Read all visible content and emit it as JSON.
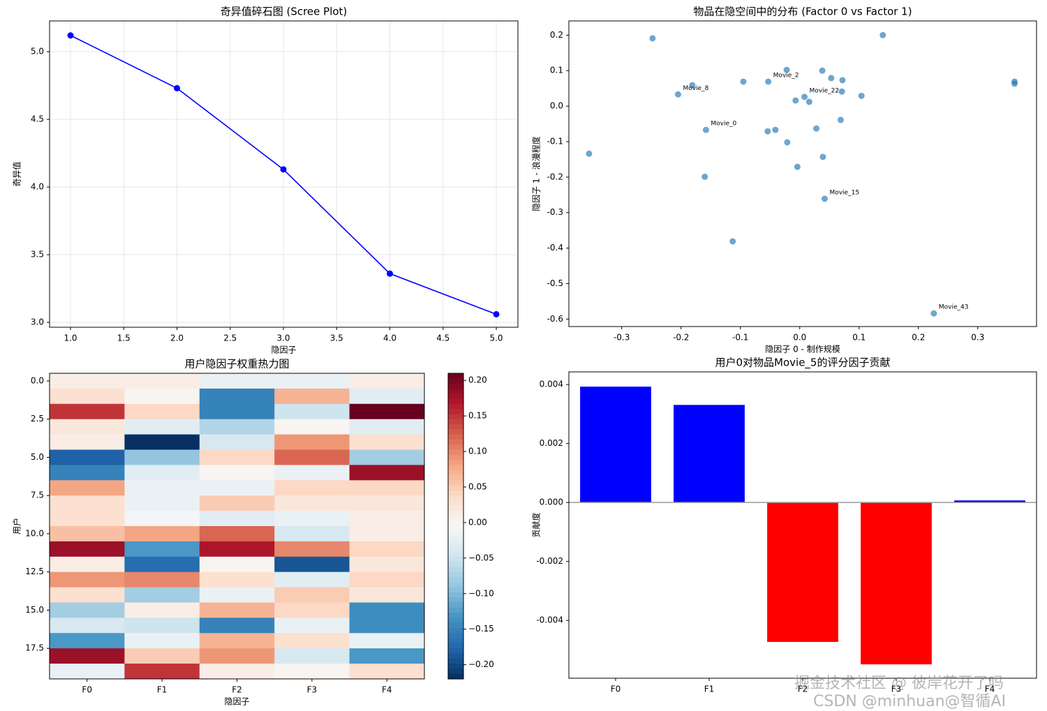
{
  "chart_data": [
    {
      "type": "line",
      "title": "奇异值碎石图 (Scree Plot)",
      "x_label": "隐因子",
      "y_label": "奇异值",
      "x": [
        1,
        2,
        3,
        4,
        5
      ],
      "values": [
        5.12,
        4.73,
        4.13,
        3.36,
        3.06
      ],
      "color": "blue",
      "xlim": [
        0.803,
        5.203
      ],
      "xticks": [
        {
          "value": 1,
          "label": "1.0"
        },
        1.5,
        {
          "value": 2,
          "label": "2.0"
        },
        2.5,
        {
          "value": 3,
          "label": "3.0"
        },
        3.5,
        {
          "value": 4,
          "label": "4.0"
        },
        4.5,
        {
          "value": 5,
          "label": "5.0"
        }
      ],
      "ylim": [
        2.964,
        5.227
      ],
      "yticks": [
        {
          "value": 3,
          "label": "3.0"
        },
        3.5,
        {
          "value": 4,
          "label": "4.0"
        },
        4.5,
        {
          "value": 5,
          "label": "5.0"
        }
      ],
      "grid": true
    },
    {
      "type": "scatter",
      "title": "物品在隐空间中的分布 (Factor 0 vs Factor 1)",
      "x_label": "隐因子 0 - 制作规模",
      "y_label": "隐因子 1 - 浪漫程度",
      "x": [
        -0.355,
        -0.248,
        -0.181,
        -0.205,
        -0.158,
        -0.16,
        -0.113,
        -0.095,
        -0.053,
        -0.022,
        -0.054,
        -0.041,
        -0.021,
        -0.004,
        -0.007,
        0.008,
        0.016,
        0.028,
        0.038,
        0.053,
        0.039,
        0.042,
        0.072,
        0.071,
        0.069,
        0.104,
        0.14,
        0.226,
        0.362,
        0.362
      ],
      "values": [
        -0.134,
        0.191,
        0.059,
        0.033,
        -0.067,
        -0.199,
        -0.381,
        0.069,
        0.069,
        0.102,
        -0.071,
        -0.067,
        -0.102,
        -0.171,
        0.016,
        0.026,
        0.012,
        -0.063,
        0.1,
        0.079,
        -0.143,
        -0.261,
        0.073,
        0.041,
        -0.039,
        0.029,
        0.2,
        -0.584,
        0.069,
        0.063
      ],
      "color": "#1f77b4",
      "annotations": [
        {
          "text": "Movie_8",
          "x": -0.205,
          "y": 0.033
        },
        {
          "text": "Movie_0",
          "x": -0.158,
          "y": -0.067
        },
        {
          "text": "Movie_2",
          "x": -0.053,
          "y": 0.069
        },
        {
          "text": "Movie_22",
          "x": 0.008,
          "y": 0.026
        },
        {
          "text": "Movie_15",
          "x": 0.042,
          "y": -0.261
        },
        {
          "text": "Movie_43",
          "x": 0.226,
          "y": -0.584
        }
      ],
      "xlim": [
        -0.389,
        0.399
      ],
      "xticks": [
        -0.3,
        -0.2,
        -0.1,
        {
          "value": 0,
          "label": "0.0"
        },
        0.1,
        0.2,
        0.3
      ],
      "ylim": [
        -0.621,
        0.24
      ],
      "yticks": [
        -0.6,
        -0.5,
        -0.4,
        -0.3,
        -0.2,
        -0.1,
        {
          "value": 0,
          "label": "0.0"
        },
        0.1,
        0.2
      ],
      "grid": false
    },
    {
      "type": "heatmap",
      "title": "用户隐因子权重热力图",
      "x_label": "隐因子",
      "y_label": "用户",
      "categories": [
        "F0",
        "F1",
        "F2",
        "F3",
        "F4"
      ],
      "values": [
        [
          0.01,
          0.01,
          -0.02,
          -0.02,
          0.01
        ],
        [
          0.03,
          0.0,
          -0.15,
          0.07,
          -0.03
        ],
        [
          0.15,
          0.04,
          -0.15,
          -0.05,
          0.21
        ],
        [
          0.02,
          -0.03,
          -0.07,
          0.0,
          -0.03
        ],
        [
          0.01,
          -0.22,
          -0.04,
          0.09,
          0.03
        ],
        [
          -0.18,
          -0.09,
          0.04,
          0.12,
          -0.08
        ],
        [
          -0.15,
          -0.03,
          0.0,
          -0.02,
          0.18
        ],
        [
          0.08,
          -0.02,
          -0.02,
          0.04,
          0.04
        ],
        [
          0.03,
          -0.02,
          0.05,
          0.02,
          0.02
        ],
        [
          0.03,
          -0.01,
          -0.03,
          -0.02,
          0.01
        ],
        [
          0.06,
          0.08,
          0.12,
          -0.04,
          0.01
        ],
        [
          0.18,
          -0.13,
          0.17,
          0.1,
          0.04
        ],
        [
          0.01,
          -0.17,
          0.0,
          -0.19,
          0.02
        ],
        [
          0.09,
          0.1,
          0.03,
          -0.03,
          0.04
        ],
        [
          0.03,
          -0.08,
          -0.02,
          0.05,
          0.02
        ],
        [
          -0.08,
          0.01,
          0.07,
          0.04,
          -0.14
        ],
        [
          -0.04,
          -0.05,
          -0.15,
          -0.02,
          -0.14
        ],
        [
          -0.13,
          -0.02,
          0.07,
          0.03,
          -0.02
        ],
        [
          0.18,
          0.05,
          0.09,
          -0.04,
          -0.13
        ],
        [
          -0.02,
          0.15,
          0.01,
          0.0,
          0.03
        ]
      ],
      "ylim": [
        19.5,
        -0.5
      ],
      "yticks": [
        {
          "value": 0,
          "label": "0.0"
        },
        2.5,
        {
          "value": 5,
          "label": "5.0"
        },
        7.5,
        {
          "value": 10,
          "label": "10.0"
        },
        12.5,
        {
          "value": 15,
          "label": "15.0"
        },
        17.5
      ],
      "colormap": "RdBu_r",
      "colorbar": {
        "lim": [
          -0.22,
          0.21
        ],
        "ticks": [
          {
            "value": -0.2,
            "label": "−0.20"
          },
          {
            "value": -0.15,
            "label": "−0.15"
          },
          {
            "value": -0.1,
            "label": "−0.10"
          },
          {
            "value": -0.05,
            "label": "−0.05"
          },
          {
            "value": 0,
            "label": "0.00"
          },
          {
            "value": 0.05,
            "label": "0.05"
          },
          {
            "value": 0.1,
            "label": "0.10"
          },
          {
            "value": 0.15,
            "label": "0.15"
          },
          {
            "value": 0.2,
            "label": "0.20"
          }
        ]
      }
    },
    {
      "type": "bar",
      "title": "用户0对物品Movie_5的评分因子贡献",
      "y_label": "贡献度",
      "categories": [
        "F0",
        "F1",
        "F2",
        "F3",
        "F4"
      ],
      "values": [
        0.00393,
        0.00331,
        -0.00473,
        -0.00549,
        7e-05
      ],
      "colors": [
        "blue",
        "blue",
        "red",
        "red",
        "blue"
      ],
      "ylim": [
        -0.00596,
        0.00443
      ],
      "yticks": [
        -0.004,
        -0.002,
        {
          "value": 0,
          "label": "0.000"
        },
        0.002,
        0.004
      ],
      "grid": false
    }
  ],
  "watermarks": [
    "掘金技术社区 @ 彼岸花开了吗",
    "CSDN @minhuan@智循AI"
  ]
}
